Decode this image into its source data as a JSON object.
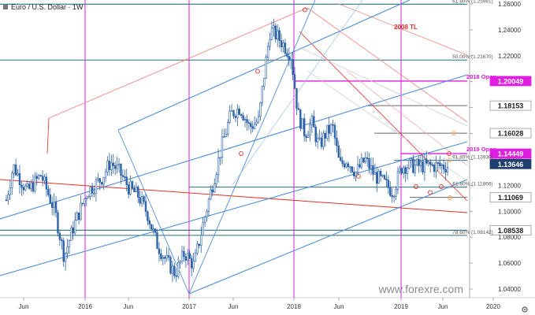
{
  "header": {
    "title": "Euro / U.S. Dollar · 1W"
  },
  "watermark": "www.forexre.com",
  "colors": {
    "up": "#2e63a8",
    "down": "#2e63a8",
    "price_tag": "#1f3f6e",
    "magenta": "#e01ee0",
    "fib_line": "#2f6e80",
    "red": "#e0302a",
    "channel_blue": "#4e8fd6",
    "axis_text": "#333333",
    "level_gray": "#6a6a6a"
  },
  "chart_data": {
    "type": "candlestick",
    "title": "Euro / U.S. Dollar · 1W",
    "ylim": [
      1.03,
      1.265
    ],
    "y_ticks": [
      "1.26000",
      "1.24000",
      "1.22000",
      "1.20000",
      "1.18000",
      "1.16000",
      "1.14000",
      "1.12000",
      "1.10000",
      "1.08000",
      "1.06000",
      "1.04000"
    ],
    "x_ticks": [
      "Jun",
      "2016",
      "Jun",
      "2017",
      "Jun",
      "2018",
      "Jun",
      "2019",
      "Jun",
      "2020"
    ],
    "price_labels": [
      {
        "text": "1.20049",
        "price": 1.20049,
        "style": "magenta"
      },
      {
        "text": "1.18153",
        "price": 1.18153,
        "style": "gray"
      },
      {
        "text": "1.16028",
        "price": 1.16028,
        "style": "gray"
      },
      {
        "text": "1.14449",
        "price": 1.14449,
        "style": "magenta"
      },
      {
        "text": "1.13646",
        "price": 1.13646,
        "style": "current"
      },
      {
        "text": "1.11069",
        "price": 1.11069,
        "style": "gray"
      },
      {
        "text": "1.08538",
        "price": 1.08538,
        "style": "gray"
      }
    ],
    "level_labels": [
      {
        "text": "61.80% (1.25981)",
        "price": 1.25981
      },
      {
        "text": "50.00% (1.21670)",
        "price": 1.2167
      },
      {
        "text": "61.80% (1.13930)",
        "price": 1.1393
      },
      {
        "text": "61.80% (1.11866)",
        "price": 1.11866
      },
      {
        "text": "78.60% (1.08142)",
        "price": 1.08142
      }
    ],
    "annotations": [
      "2008 TL",
      "2018 Open",
      "2019 Open"
    ],
    "price_path": [
      {
        "x": 0,
        "p": 1.1
      },
      {
        "x": 0.02,
        "p": 1.135
      },
      {
        "x": 0.05,
        "p": 1.115
      },
      {
        "x": 0.08,
        "p": 1.128
      },
      {
        "x": 0.11,
        "p": 1.1
      },
      {
        "x": 0.13,
        "p": 1.065
      },
      {
        "x": 0.15,
        "p": 1.088
      },
      {
        "x": 0.18,
        "p": 1.115
      },
      {
        "x": 0.21,
        "p": 1.125
      },
      {
        "x": 0.23,
        "p": 1.138
      },
      {
        "x": 0.25,
        "p": 1.13
      },
      {
        "x": 0.27,
        "p": 1.118
      },
      {
        "x": 0.29,
        "p": 1.112
      },
      {
        "x": 0.31,
        "p": 1.098
      },
      {
        "x": 0.33,
        "p": 1.075
      },
      {
        "x": 0.35,
        "p": 1.062
      },
      {
        "x": 0.37,
        "p": 1.052
      },
      {
        "x": 0.39,
        "p": 1.068
      },
      {
        "x": 0.41,
        "p": 1.058
      },
      {
        "x": 0.43,
        "p": 1.09
      },
      {
        "x": 0.45,
        "p": 1.12
      },
      {
        "x": 0.47,
        "p": 1.15
      },
      {
        "x": 0.49,
        "p": 1.175
      },
      {
        "x": 0.51,
        "p": 1.18
      },
      {
        "x": 0.53,
        "p": 1.165
      },
      {
        "x": 0.55,
        "p": 1.17
      },
      {
        "x": 0.56,
        "p": 1.2
      },
      {
        "x": 0.575,
        "p": 1.24
      },
      {
        "x": 0.59,
        "p": 1.235
      },
      {
        "x": 0.605,
        "p": 1.228
      },
      {
        "x": 0.62,
        "p": 1.22
      },
      {
        "x": 0.635,
        "p": 1.175
      },
      {
        "x": 0.65,
        "p": 1.16
      },
      {
        "x": 0.665,
        "p": 1.168
      },
      {
        "x": 0.68,
        "p": 1.15
      },
      {
        "x": 0.695,
        "p": 1.16
      },
      {
        "x": 0.71,
        "p": 1.165
      },
      {
        "x": 0.725,
        "p": 1.135
      },
      {
        "x": 0.74,
        "p": 1.14
      },
      {
        "x": 0.76,
        "p": 1.13
      },
      {
        "x": 0.78,
        "p": 1.14
      },
      {
        "x": 0.8,
        "p": 1.128
      },
      {
        "x": 0.82,
        "p": 1.122
      },
      {
        "x": 0.84,
        "p": 1.115
      },
      {
        "x": 0.86,
        "p": 1.135
      }
    ]
  }
}
